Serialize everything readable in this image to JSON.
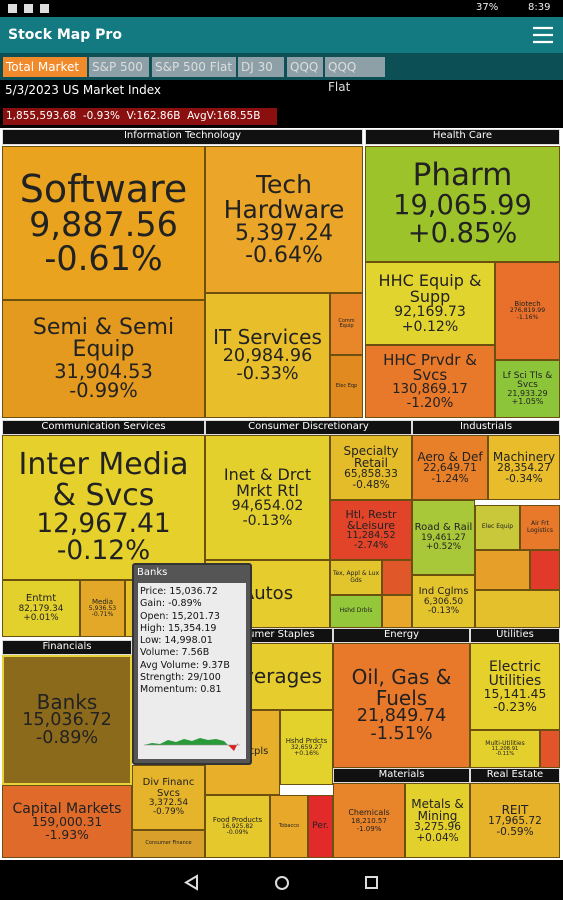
{
  "status_bar": {
    "battery": "37%",
    "time": "8:39"
  },
  "app_bar": {
    "title": "Stock Map Pro"
  },
  "tabs": [
    "Total Market",
    "S&P 500",
    "S&P 500 Flat",
    "DJ 30",
    "QQQ",
    "QQQ Flat"
  ],
  "index": {
    "title": "5/3/2023 US Market Index",
    "value": "1,855,593.68",
    "change": "-0.93%",
    "volume": "V:162.86B",
    "avg_volume": "AvgV:168.55B"
  },
  "sectors": [
    "Information Technology",
    "Health Care",
    "Communication Services",
    "Consumer Discretionary",
    "Industrials",
    "Financials",
    "Consumer Staples",
    "Energy",
    "Utilities",
    "Materials",
    "Real Estate"
  ],
  "cells": [
    {
      "label": "Software",
      "value": "9,887.56",
      "change": "-0.61%"
    },
    {
      "label": "Tech Hardware",
      "value": "5,397.24",
      "change": "-0.64%"
    },
    {
      "label": "Semi & Semi Equip",
      "value": "31,904.53",
      "change": "-0.99%"
    },
    {
      "label": "IT Services",
      "value": "20,984.96",
      "change": "-0.33%"
    },
    {
      "label": "Comm Equip"
    },
    {
      "label": "Elec Eqp"
    },
    {
      "label": "Pharm",
      "value": "19,065.99",
      "change": "+0.85%"
    },
    {
      "label": "HHC Equip & Supp",
      "value": "92,169.73",
      "change": "+0.12%"
    },
    {
      "label": "Biotech",
      "value": "276,819.99",
      "change": "-1.16%"
    },
    {
      "label": "HHC Prvdr & Svcs",
      "value": "130,869.17",
      "change": "-1.20%"
    },
    {
      "label": "Lf Sci Tls & Svcs",
      "value": "21,933.29",
      "change": "+1.05%"
    },
    {
      "label": "Inter Media & Svcs",
      "value": "12,967.41",
      "change": "-0.12%"
    },
    {
      "label": "Entmt",
      "value": "82,179.34",
      "change": "+0.01%"
    },
    {
      "label": "Media",
      "value": "5,936.53",
      "change": "-0.71%"
    },
    {
      "label": "Inet & Drct Mrkt Rtl",
      "value": "94,654.02",
      "change": "-0.13%"
    },
    {
      "label": "Autos"
    },
    {
      "label": "Specialty Retail",
      "value": "65,858.33",
      "change": "-0.48%"
    },
    {
      "label": "Htl, Restr &Leisure",
      "value": "11,284.52",
      "change": "-2.74%"
    },
    {
      "label": "Tex, Appl & Lux Gds"
    },
    {
      "label": "Hshd Drbls"
    },
    {
      "label": "Aero & Def",
      "value": "22,649.71",
      "change": "-1.24%"
    },
    {
      "label": "Machinery",
      "value": "28,354.27",
      "change": "-0.34%"
    },
    {
      "label": "Road & Rail",
      "value": "19,461.27",
      "change": "+0.52%"
    },
    {
      "label": "Elec Equip"
    },
    {
      "label": "Air Frt Logistics"
    },
    {
      "label": "Ind Cglms",
      "value": "6,306.50",
      "change": "-0.13%"
    },
    {
      "label": "Banks",
      "value": "15,036.72",
      "change": "-0.89%"
    },
    {
      "label": "Capital Markets",
      "value": "159,000.31",
      "change": "-1.93%"
    },
    {
      "label": "Div Financ Svcs",
      "value": "3,372.54",
      "change": "-0.79%"
    },
    {
      "label": "Consumer Finance"
    },
    {
      "label": "Beverages"
    },
    {
      "label": "Food Stpls"
    },
    {
      "label": "Hshd Prdcts",
      "value": "32,659.27",
      "change": "+0.16%"
    },
    {
      "label": "Food Products",
      "value": "16,925.82",
      "change": "-0.09%"
    },
    {
      "label": "Tobacco"
    },
    {
      "label": "Per."
    },
    {
      "label": "Oil, Gas & Fuels",
      "value": "21,849.74",
      "change": "-1.51%"
    },
    {
      "label": "Electric Utilities",
      "value": "15,141.45",
      "change": "-0.23%"
    },
    {
      "label": "Multi-Utilities",
      "value": "11,208.91",
      "change": "-0.11%"
    },
    {
      "label": "Chemicals",
      "value": "18,210.57",
      "change": "-1.09%"
    },
    {
      "label": "Metals & Mining",
      "value": "3,275.96",
      "change": "+0.04%"
    },
    {
      "label": "REIT",
      "value": "17,965.72",
      "change": "-0.59%"
    }
  ],
  "popup": {
    "title": "Banks",
    "rows": [
      "Price: 15,036.72",
      "Gain: -0.89%",
      "Open: 15,201.73",
      "High: 15,354.19",
      "Low: 14,998.01",
      "Volume: 7.56B",
      "Avg Volume: 9.37B",
      "Strength: 29/100",
      "Momentum: 0.81"
    ]
  }
}
